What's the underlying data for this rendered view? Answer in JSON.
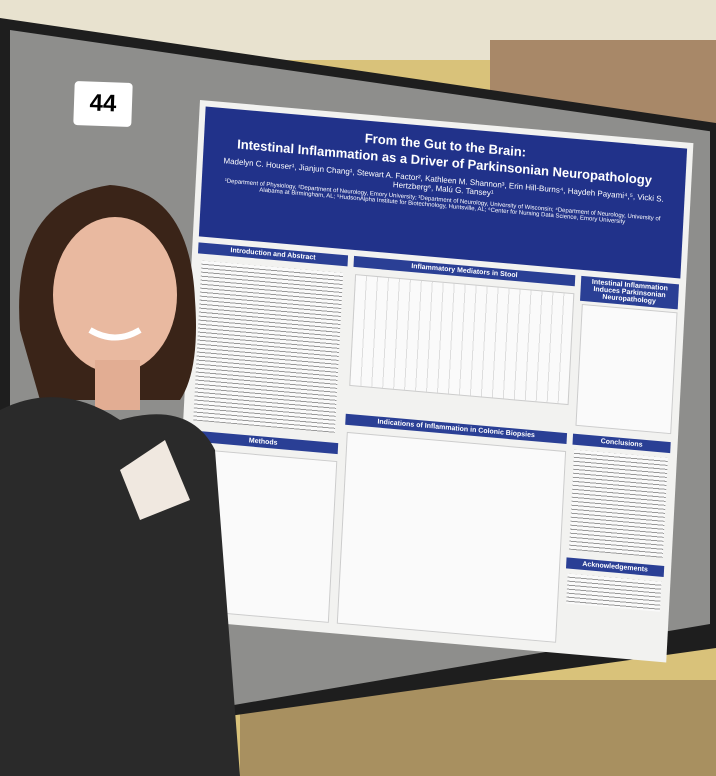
{
  "board_number": "44",
  "poster": {
    "title_line1": "From the Gut to the Brain:",
    "title_line2": "Intestinal Inflammation as a Driver of Parkinsonian Neuropathology",
    "authors": "Madelyn C. Houser¹, Jianjun Chang¹, Stewart A. Factor², Kathleen M. Shannon³, Erin Hill-Burns⁴, Haydeh Payami⁴,⁵, Vicki S. Hertzberg⁶, Malú G. Tansey¹",
    "affiliations": "¹Department of Physiology, ²Department of Neurology, Emory University; ³Department of Neurology, University of Wisconsin; ⁴Department of Neurology, University of Alabama at Birmingham, AL; ⁵HudsonAlpha Institute for Biotechnology, Huntsville, AL; ⁶Center for Nursing Data Science, Emory University",
    "sections": [
      "Introduction and Abstract",
      "Methods",
      "Inflammatory Mediators in Stool",
      "Indications of Inflammation in Colonic Biopsies",
      "Intestinal Inflammation Induces Parkinsonian Neuropathology",
      "Conclusions",
      "Acknowledgements"
    ]
  }
}
